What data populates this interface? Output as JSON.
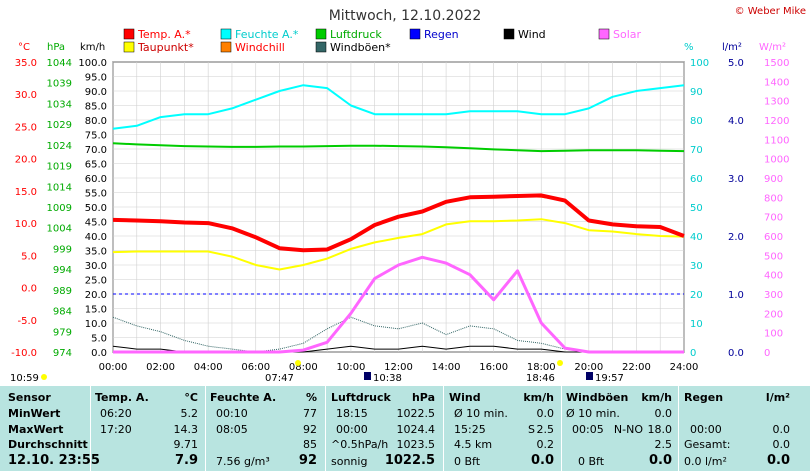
{
  "title": "Mittwoch, 12.10.2022",
  "credit": "© Weber Mike",
  "legend": [
    {
      "label": "Temp. A.*",
      "color": "#ff0000"
    },
    {
      "label": "Feuchte A.*",
      "color": "#00ffff"
    },
    {
      "label": "Luftdruck",
      "color": "#00cc00"
    },
    {
      "label": "Regen",
      "color": "#0000ff"
    },
    {
      "label": "Wind",
      "color": "#000000"
    },
    {
      "label": "Solar",
      "color": "#ff66ff"
    },
    {
      "label": "Taupunkt*",
      "color": "#ffff00"
    },
    {
      "label": "Windchill",
      "color": "#ff8000"
    },
    {
      "label": "Windböen*",
      "color": "#336666"
    }
  ],
  "axes": {
    "temp": {
      "unit": "°C",
      "ticks": [
        "35.0",
        "30.0",
        "25.0",
        "20.0",
        "15.0",
        "10.0",
        "5.0",
        "0.0",
        "-5.0",
        "-10.0"
      ],
      "color": "#ff0000"
    },
    "pressure": {
      "unit": "hPa",
      "ticks": [
        "1044",
        "1039",
        "1034",
        "1029",
        "1024",
        "1019",
        "1014",
        "1009",
        "1004",
        "999",
        "994",
        "989",
        "984",
        "979",
        "974"
      ],
      "color": "#00cc00"
    },
    "wind": {
      "unit": "km/h",
      "ticks": [
        "100.0",
        "95.0",
        "90.0",
        "85.0",
        "80.0",
        "75.0",
        "70.0",
        "65.0",
        "60.0",
        "55.0",
        "50.0",
        "45.0",
        "40.0",
        "35.0",
        "30.0",
        "25.0",
        "20.0",
        "15.0",
        "10.0",
        "5.0",
        "0.0"
      ]
    },
    "humidity": {
      "unit": "%",
      "ticks": [
        "100",
        "90",
        "80",
        "70",
        "60",
        "50",
        "40",
        "30",
        "20",
        "10",
        "0"
      ],
      "color": "#00cccc"
    },
    "rain": {
      "unit": "l/m²",
      "ticks": [
        "5.0",
        "4.0",
        "3.0",
        "2.0",
        "1.0",
        "0.0"
      ],
      "color": "#000099"
    },
    "solar": {
      "unit": "W/m²",
      "ticks": [
        "1500",
        "1400",
        "1300",
        "1200",
        "1100",
        "1000",
        "900",
        "800",
        "700",
        "600",
        "500",
        "400",
        "300",
        "200",
        "100",
        "0"
      ],
      "color": "#ff66ff"
    },
    "time": {
      "ticks": [
        "00:00",
        "02:00",
        "04:00",
        "06:00",
        "08:00",
        "10:00",
        "12:00",
        "14:00",
        "16:00",
        "18:00",
        "20:00",
        "22:00",
        "24:00"
      ]
    }
  },
  "markers": {
    "sunrise_left": "10:59",
    "sunrise": "07:47",
    "solar_noon": "10:38",
    "sunset": "18:46",
    "solar_end": "19:57"
  },
  "chart_data": {
    "type": "line",
    "title": "Mittwoch, 12.10.2022",
    "x": [
      "00:00",
      "01:00",
      "02:00",
      "03:00",
      "04:00",
      "05:00",
      "06:00",
      "07:00",
      "08:00",
      "09:00",
      "10:00",
      "11:00",
      "12:00",
      "13:00",
      "14:00",
      "15:00",
      "16:00",
      "17:00",
      "18:00",
      "19:00",
      "20:00",
      "21:00",
      "22:00",
      "23:00",
      "24:00"
    ],
    "xlim": [
      0,
      24
    ],
    "series": [
      {
        "name": "Temp. A.*",
        "axis": "°C",
        "color": "#ff0000",
        "values": [
          10.5,
          10.4,
          10.3,
          10.1,
          10.0,
          9.2,
          7.8,
          6.1,
          5.8,
          5.9,
          7.5,
          9.7,
          11.0,
          11.8,
          13.3,
          14.0,
          14.1,
          14.2,
          14.3,
          13.5,
          10.4,
          9.8,
          9.5,
          9.4,
          8.0
        ]
      },
      {
        "name": "Feuchte A.*",
        "axis": "%",
        "color": "#00ffff",
        "values": [
          77,
          78,
          81,
          82,
          82,
          84,
          87,
          90,
          92,
          91,
          85,
          82,
          82,
          82,
          82,
          83,
          83,
          83,
          82,
          82,
          84,
          88,
          90,
          91,
          92
        ]
      },
      {
        "name": "Luftdruck",
        "axis": "hPa",
        "color": "#00cc00",
        "values": [
          1024.4,
          1024.1,
          1023.9,
          1023.7,
          1023.6,
          1023.5,
          1023.5,
          1023.6,
          1023.6,
          1023.7,
          1023.8,
          1023.8,
          1023.7,
          1023.6,
          1023.4,
          1023.2,
          1022.9,
          1022.7,
          1022.5,
          1022.6,
          1022.7,
          1022.7,
          1022.7,
          1022.6,
          1022.5
        ]
      },
      {
        "name": "Taupunkt*",
        "axis": "°C",
        "color": "#ffff00",
        "values": [
          5.5,
          5.6,
          5.6,
          5.6,
          5.6,
          4.8,
          3.5,
          2.8,
          3.5,
          4.5,
          6.0,
          7.0,
          7.7,
          8.3,
          9.8,
          10.3,
          10.3,
          10.4,
          10.6,
          10.0,
          8.9,
          8.7,
          8.3,
          8.0,
          7.9
        ]
      },
      {
        "name": "Windchill",
        "axis": "°C",
        "color": "#ff8000",
        "values": [
          10.5,
          10.4,
          10.3,
          10.1,
          10.0,
          9.2,
          7.8,
          6.1,
          5.8,
          5.9,
          7.5,
          9.7,
          11.0,
          11.8,
          13.3,
          14.0,
          14.1,
          14.2,
          14.0,
          13.5,
          10.4,
          9.8,
          9.5,
          9.4,
          8.0
        ]
      },
      {
        "name": "Windböen*",
        "axis": "km/h",
        "color": "#336666",
        "values": [
          12,
          9,
          7,
          4,
          2,
          1,
          0,
          1,
          3,
          8,
          12,
          9,
          8,
          10,
          6,
          9,
          8,
          4,
          3,
          1,
          0,
          0,
          0,
          0,
          0
        ]
      },
      {
        "name": "Wind",
        "axis": "km/h",
        "color": "#000000",
        "values": [
          2,
          1,
          1,
          0,
          0,
          0,
          0,
          0,
          0,
          1,
          2,
          1,
          1,
          2,
          1,
          2,
          2,
          1,
          1,
          0,
          0,
          0,
          0,
          0,
          0
        ]
      },
      {
        "name": "Solar",
        "axis": "W/m²",
        "color": "#ff66ff",
        "values": [
          0,
          0,
          0,
          0,
          0,
          0,
          0,
          0,
          10,
          50,
          200,
          380,
          450,
          490,
          460,
          400,
          270,
          420,
          150,
          20,
          0,
          0,
          0,
          0,
          0
        ]
      },
      {
        "name": "Regen",
        "axis": "l/m²",
        "color": "#0000ff",
        "values": [
          1.0,
          1.0,
          1.0,
          1.0,
          1.0,
          1.0,
          1.0,
          1.0,
          1.0,
          1.0,
          1.0,
          1.0,
          1.0,
          1.0,
          1.0,
          1.0,
          1.0,
          1.0,
          1.0,
          1.0,
          1.0,
          1.0,
          1.0,
          1.0,
          1.0
        ]
      }
    ],
    "ylim_temp": [
      -10,
      35
    ],
    "ylim_pressure": [
      974,
      1044
    ],
    "ylim_wind": [
      0,
      100
    ],
    "ylim_humidity": [
      0,
      100
    ],
    "ylim_rain": [
      0,
      5
    ],
    "ylim_solar": [
      0,
      1500
    ],
    "grid": true
  },
  "stats": {
    "row_labels": {
      "sensor": "Sensor",
      "min": "MinWert",
      "max": "MaxWert",
      "avg": "Durchschnitt",
      "current": "12.10.  23:55"
    },
    "temp": {
      "title": "Temp. A.",
      "unit": "°C",
      "min_time": "06:20",
      "min": "5.2",
      "max_time": "17:20",
      "max": "14.3",
      "avg": "9.71",
      "current": "7.9"
    },
    "humidity": {
      "title": "Feuchte A.",
      "unit": "%",
      "min_time": "00:10",
      "min": "77",
      "max_time": "08:05",
      "max": "92",
      "avg": "85",
      "abs": "7.56 g/m³",
      "current": "92"
    },
    "pressure": {
      "title": "Luftdruck",
      "unit": "hPa",
      "min_time": "18:15",
      "min": "1022.5",
      "max_time": "00:00",
      "max": "1024.4",
      "trend": "^0.5hPa/h",
      "avg": "1023.5",
      "state": "sonnig",
      "current": "1022.5"
    },
    "wind": {
      "title": "Wind",
      "unit": "km/h",
      "r1_label": "Ø 10 min.",
      "r1_val": "0.0",
      "r2_label": "15:25",
      "r2_dir": "S",
      "r2_val": "2.5",
      "r3_label": "4.5 km",
      "r3_val": "0.2",
      "r4_label": "0 Bft",
      "current": "0.0"
    },
    "gusts": {
      "title": "Windböen",
      "unit": "km/h",
      "r1_label": "Ø 10 min.",
      "r1_val": "0.0",
      "r2_label": "00:05",
      "r2_dir": "N-NO",
      "r2_val": "18.0",
      "r3_val": "2.5",
      "r4_label": "0 Bft",
      "current": "0.0"
    },
    "rain": {
      "title": "Regen",
      "unit": "l/m²",
      "r2_label": "00:00",
      "r2_val": "0.0",
      "r3_label": "Gesamt:",
      "r3_val": "0.0",
      "r4_label": "0.0 l/m²",
      "current": "0.0"
    }
  }
}
